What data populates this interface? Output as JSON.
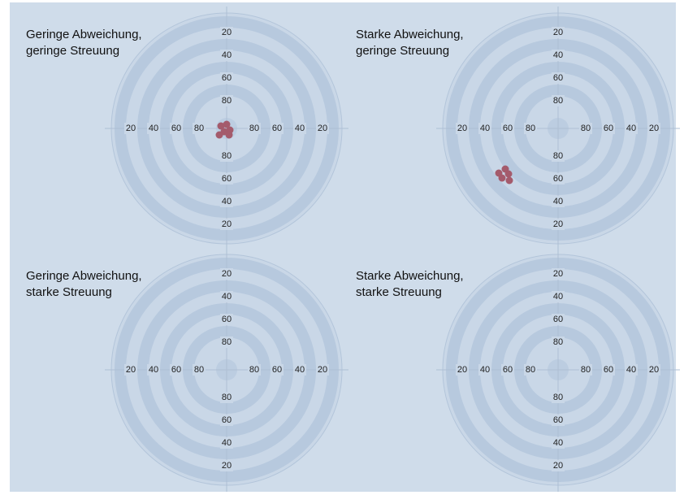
{
  "panels": [
    {
      "title": [
        "Geringe Abweichung,",
        "geringe Streuung"
      ]
    },
    {
      "title": [
        "Starke Abweichung,",
        "geringe Streuung"
      ]
    },
    {
      "title": [
        "Geringe Abweichung,",
        "starke Streuung"
      ]
    },
    {
      "title": [
        "Starke Abweichung,",
        "starke Streuung"
      ]
    }
  ],
  "ring_labels": [
    "20",
    "40",
    "60",
    "80"
  ]
}
